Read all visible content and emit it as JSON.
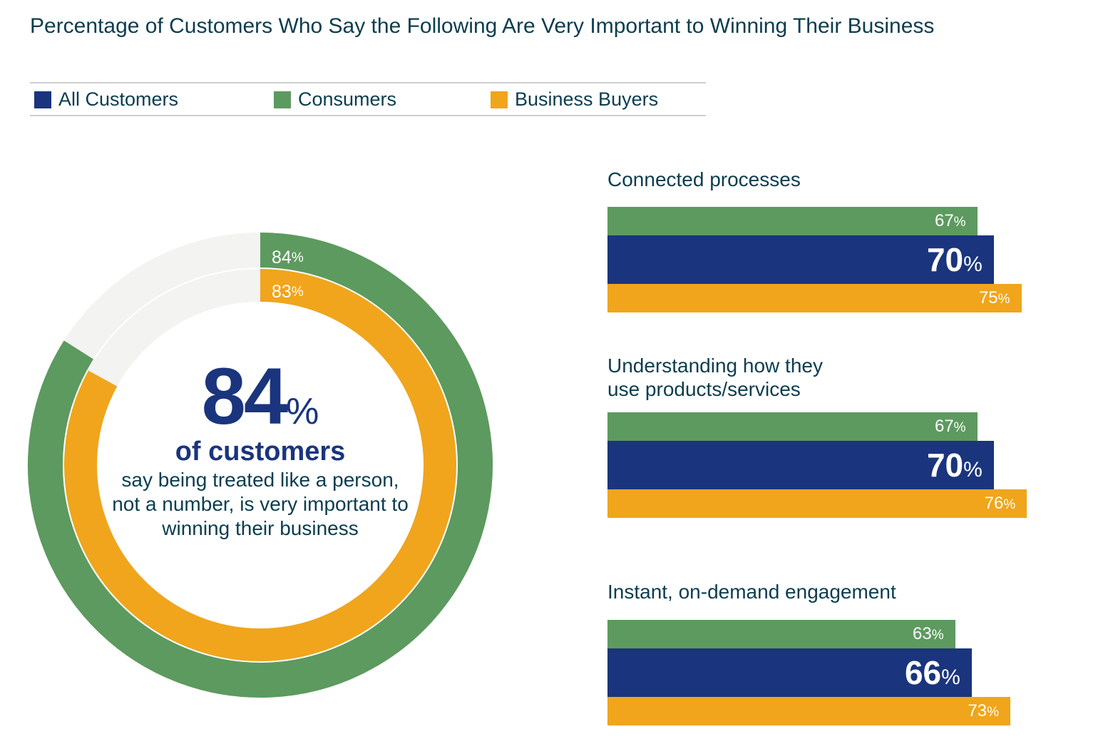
{
  "title": "Percentage of Customers Who Say the Following Are Very Important to Winning Their Business",
  "legend": [
    {
      "label": "All Customers",
      "color": "#1a357d"
    },
    {
      "label": "Consumers",
      "color": "#5d9a5f"
    },
    {
      "label": "Business Buyers",
      "color": "#f0a51c"
    }
  ],
  "donut": {
    "headline_value": "84",
    "headline_unit": "%",
    "headline_sub": "of customers",
    "description": "say being treated like a person, not a number, is very important to winning their business"
  },
  "chart_data": [
    {
      "type": "donut",
      "series": [
        {
          "name": "Consumers",
          "value": 84,
          "label": "84",
          "unit": "%",
          "color": "#5d9a5f"
        },
        {
          "name": "Business Buyers",
          "value": 83,
          "label": "83",
          "unit": "%",
          "color": "#f0a51c"
        }
      ],
      "track_color": "#f3f3f1"
    },
    {
      "type": "bar",
      "orientation": "horizontal",
      "series_names": [
        "Consumers",
        "All Customers",
        "Business Buyers"
      ],
      "categories": [
        {
          "label": "Connected processes",
          "bars": [
            {
              "series": "Consumers",
              "value": 67,
              "label": "67",
              "unit": "%"
            },
            {
              "series": "All Customers",
              "value": 70,
              "label": "70",
              "unit": "%"
            },
            {
              "series": "Business Buyers",
              "value": 75,
              "label": "75",
              "unit": "%"
            }
          ]
        },
        {
          "label": "Understanding how they\nuse products/services",
          "bars": [
            {
              "series": "Consumers",
              "value": 67,
              "label": "67",
              "unit": "%"
            },
            {
              "series": "All Customers",
              "value": 70,
              "label": "70",
              "unit": "%"
            },
            {
              "series": "Business Buyers",
              "value": 76,
              "label": "76",
              "unit": "%"
            }
          ]
        },
        {
          "label": "Instant, on-demand engagement",
          "bars": [
            {
              "series": "Consumers",
              "value": 63,
              "label": "63",
              "unit": "%"
            },
            {
              "series": "All Customers",
              "value": 66,
              "label": "66",
              "unit": "%"
            },
            {
              "series": "Business Buyers",
              "value": 73,
              "label": "73",
              "unit": "%"
            }
          ]
        }
      ]
    }
  ]
}
